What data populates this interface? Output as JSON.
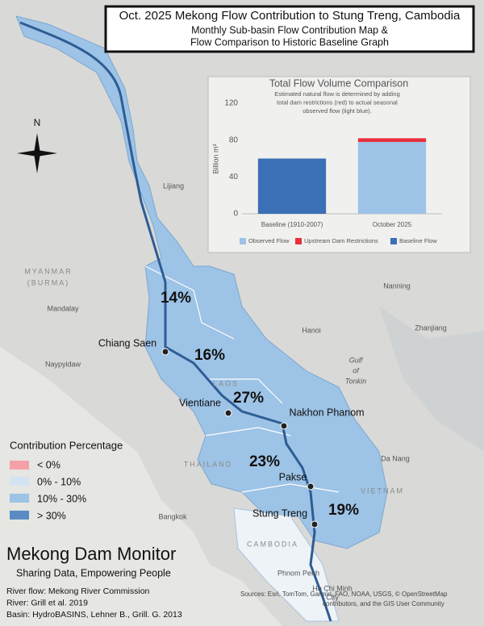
{
  "header": {
    "lines": [
      "Oct. 2025 Mekong Flow Contribution to Stung Treng, Cambodia",
      "Monthly Sub-basin Flow Contribution Map &",
      "Flow Comparison to Historic Baseline Graph"
    ]
  },
  "chart_data": {
    "type": "bar",
    "stacked": true,
    "title": "Total Flow Volume Comparison",
    "subtitle": [
      "Estimated natural flow is determined by adding",
      "total dam restrictions (red) to actual seasonal",
      "observed flow (light blue)."
    ],
    "y_label": "Billion m³",
    "categories": [
      "Baseline (1910-2007)",
      "October 2025"
    ],
    "series": [
      {
        "name": "Observed Flow",
        "color": "#9dc3e6",
        "values": [
          null,
          78
        ]
      },
      {
        "name": "Upstream Dam Restrictions",
        "color": "#e8303a",
        "values": [
          null,
          4
        ]
      },
      {
        "name": "Baseline Flow",
        "color": "#3b6fb6",
        "values": [
          60,
          null
        ]
      }
    ],
    "ylim": [
      0,
      120
    ],
    "yticks": [
      0,
      40,
      80,
      120
    ],
    "grid": false
  },
  "map": {
    "compass": "N",
    "contributions": [
      "14%",
      "16%",
      "27%",
      "23%",
      "19%"
    ],
    "gauges": [
      "Chiang Saen",
      "Vientiane",
      "Nakhon Phanom",
      "Pakse",
      "Stung Treng"
    ],
    "places": [
      "Lijiang",
      "Mandalay",
      "Naypyidaw",
      "Hanoi",
      "Nanning",
      "Zhanjiang",
      "Da Nang",
      "Bangkok",
      "Phnom Penh",
      "Ho Chi Minh",
      "City"
    ],
    "countries": [
      "MYANMAR",
      "(BURMA)",
      "LAOS",
      "THAILAND",
      "VIETNAM",
      "CAMBODIA"
    ],
    "water": [
      "Gulf",
      "of",
      "Tonkin"
    ]
  },
  "legend": {
    "title": "Contribution Percentage",
    "items": [
      "< 0%",
      "0% - 10%",
      "10% - 30%",
      "> 30%"
    ]
  },
  "brand": {
    "name": "Mekong Dam Monitor",
    "tagline": "Sharing Data, Empowering People"
  },
  "credits": [
    "River flow: Mekong River Commission",
    "River: Grill et al. 2019",
    "Basin: HydroBASINS, Lehner B., Grill. G. 2013"
  ],
  "sources": [
    "Sources: Esri, TomTom, Garmin, FAO, NOAA, USGS, © OpenStreetMap",
    "contributors, and the GIS User Community"
  ]
}
